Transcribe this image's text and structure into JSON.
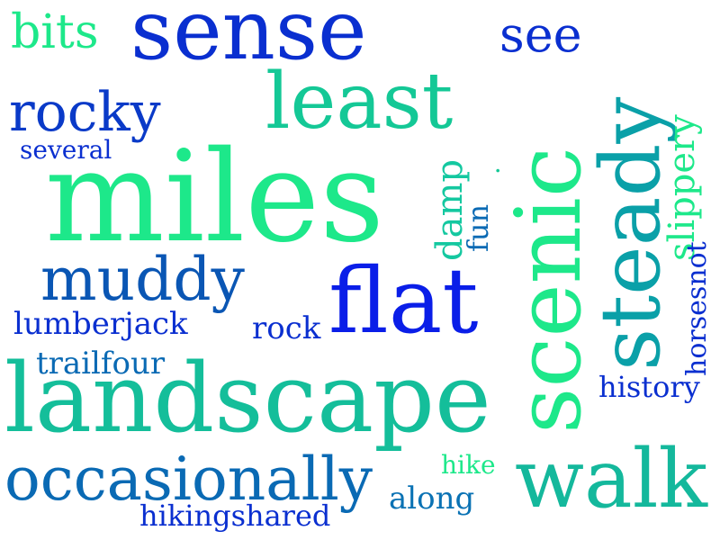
{
  "words": {
    "sense": {
      "text": "sense",
      "color": "#0a2fd0"
    },
    "bits": {
      "text": "bits",
      "color": "#1de88a"
    },
    "see": {
      "text": "see",
      "color": "#0a2fd0"
    },
    "least": {
      "text": "least",
      "color": "#14c896"
    },
    "rocky": {
      "text": "rocky",
      "color": "#0a3ac8"
    },
    "several": {
      "text": "several",
      "color": "#0a2fd0"
    },
    "miles": {
      "text": "miles",
      "color": "#1de88a"
    },
    "muddy": {
      "text": "muddy",
      "color": "#0a56b4"
    },
    "flat": {
      "text": "flat",
      "color": "#0a1ee8"
    },
    "lumberjack": {
      "text": "lumberjack",
      "color": "#0a2fd0"
    },
    "rock": {
      "text": "rock",
      "color": "#0a2fd0"
    },
    "trailfour": {
      "text": "trailfour",
      "color": "#0a6ab4"
    },
    "landscape": {
      "text": "landscape",
      "color": "#14be9a"
    },
    "history": {
      "text": "history",
      "color": "#0a2fd0"
    },
    "hike": {
      "text": "hike",
      "color": "#1de88a"
    },
    "occasionally": {
      "text": "occasionally",
      "color": "#0a6ab4"
    },
    "walk": {
      "text": "walk",
      "color": "#14b89c"
    },
    "along": {
      "text": "along",
      "color": "#0a72b4"
    },
    "hikingshared": {
      "text": "hikingshared",
      "color": "#0a2fd0"
    },
    "scenic": {
      "text": "scenic",
      "color": "#1de88a"
    },
    "steady": {
      "text": "steady",
      "color": "#0aa0a8"
    },
    "damp": {
      "text": "damp",
      "color": "#14c8a0"
    },
    "fun": {
      "text": "fun",
      "color": "#0a6ab4"
    },
    "slippery": {
      "text": "slippery",
      "color": "#1de88a"
    },
    "horsesnot": {
      "text": "horsesnot",
      "color": "#0a2fd0"
    },
    "dot": {
      "text": "·",
      "color": "#14c896"
    }
  }
}
